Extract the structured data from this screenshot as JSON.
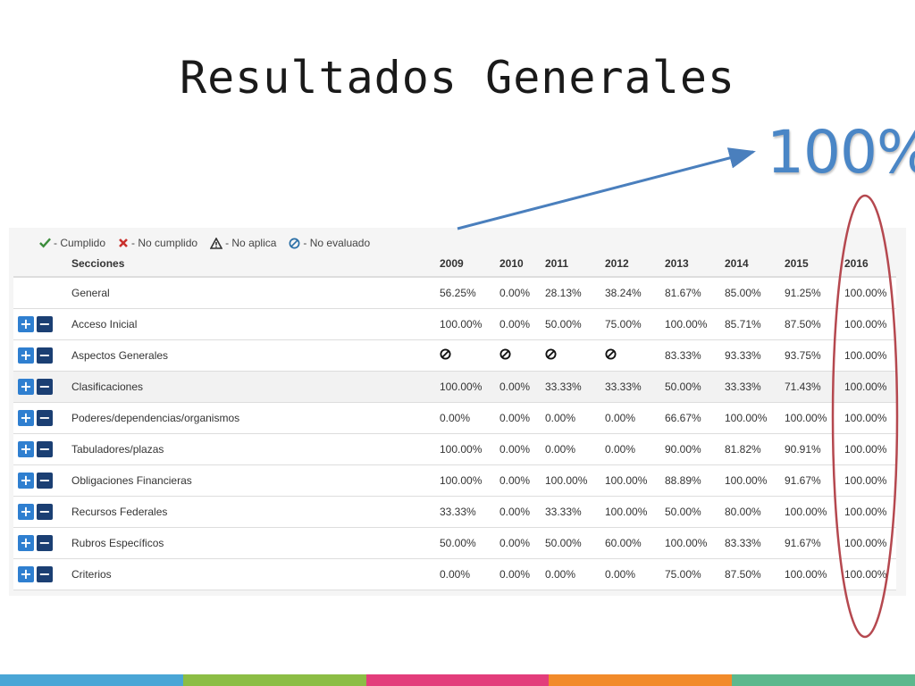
{
  "slide": {
    "title": "Resultados Generales",
    "highlight": "100%"
  },
  "legend": [
    {
      "icon": "check-icon",
      "label": "- Cumplido",
      "color": "#3c8d3c"
    },
    {
      "icon": "cross-icon",
      "label": "- No cumplido",
      "color": "#c9302c"
    },
    {
      "icon": "warning-icon",
      "label": "- No aplica",
      "color": "#333333"
    },
    {
      "icon": "not-evaluated-icon",
      "label": "- No evaluado",
      "color": "#2a6fa6"
    }
  ],
  "table": {
    "headers": [
      "Secciones",
      "2009",
      "2010",
      "2011",
      "2012",
      "2013",
      "2014",
      "2015",
      "2016"
    ],
    "rows": [
      {
        "section": "General",
        "expandable": false,
        "values": [
          "56.25%",
          "0.00%",
          "28.13%",
          "38.24%",
          "81.67%",
          "85.00%",
          "91.25%",
          "100.00%"
        ]
      },
      {
        "section": "Acceso Inicial",
        "expandable": true,
        "values": [
          "100.00%",
          "0.00%",
          "50.00%",
          "75.00%",
          "100.00%",
          "85.71%",
          "87.50%",
          "100.00%"
        ]
      },
      {
        "section": "Aspectos Generales",
        "expandable": true,
        "values": [
          "no-evaluado",
          "no-evaluado",
          "no-evaluado",
          "no-evaluado",
          "83.33%",
          "93.33%",
          "93.75%",
          "100.00%"
        ]
      },
      {
        "section": "Clasificaciones",
        "expandable": true,
        "values": [
          "100.00%",
          "0.00%",
          "33.33%",
          "33.33%",
          "50.00%",
          "33.33%",
          "71.43%",
          "100.00%"
        ]
      },
      {
        "section": "Poderes/dependencias/organismos",
        "expandable": true,
        "values": [
          "0.00%",
          "0.00%",
          "0.00%",
          "0.00%",
          "66.67%",
          "100.00%",
          "100.00%",
          "100.00%"
        ]
      },
      {
        "section": "Tabuladores/plazas",
        "expandable": true,
        "values": [
          "100.00%",
          "0.00%",
          "0.00%",
          "0.00%",
          "90.00%",
          "81.82%",
          "90.91%",
          "100.00%"
        ]
      },
      {
        "section": "Obligaciones Financieras",
        "expandable": true,
        "values": [
          "100.00%",
          "0.00%",
          "100.00%",
          "100.00%",
          "88.89%",
          "100.00%",
          "91.67%",
          "100.00%"
        ]
      },
      {
        "section": "Recursos Federales",
        "expandable": true,
        "values": [
          "33.33%",
          "0.00%",
          "33.33%",
          "100.00%",
          "50.00%",
          "80.00%",
          "100.00%",
          "100.00%"
        ]
      },
      {
        "section": "Rubros Específicos",
        "expandable": true,
        "values": [
          "50.00%",
          "0.00%",
          "50.00%",
          "60.00%",
          "100.00%",
          "83.33%",
          "91.67%",
          "100.00%"
        ]
      },
      {
        "section": "Criterios",
        "expandable": true,
        "values": [
          "0.00%",
          "0.00%",
          "0.00%",
          "0.00%",
          "75.00%",
          "87.50%",
          "100.00%",
          "100.00%"
        ]
      }
    ]
  },
  "buttons": {
    "plus": "+",
    "minus": "−"
  },
  "colors": {
    "highlight_text": "#4a86c6",
    "arrow": "#4a7fbd",
    "ellipse": "#b5484f",
    "plus_button": "#2f7fd0",
    "minus_button": "#1b3f73"
  },
  "stripe_colors": [
    "#4aa6d6",
    "#8cbd45",
    "#e33d7b",
    "#f28b2a",
    "#5cb88d"
  ]
}
